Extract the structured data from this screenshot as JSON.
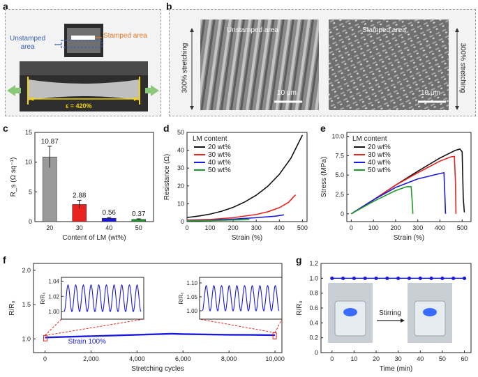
{
  "panel_labels": {
    "a": "a",
    "b": "b",
    "c": "c",
    "d": "d",
    "e": "e",
    "f": "f",
    "g": "g"
  },
  "panel_a": {
    "unstamped_label_1": "Unstamped",
    "unstamped_label_2": "area",
    "stamped_label": "Stamped area",
    "strain_label": "ε = 420%"
  },
  "panel_b": {
    "left_vertical": "300% stretching",
    "right_vertical": "300% stretching",
    "unstamped_title": "Unstamped area",
    "stamped_title": "Stamped area",
    "scale_left": "10 μm",
    "scale_right": "10 μm"
  },
  "colors": {
    "red": "#e8231f",
    "blue": "#1a1adf",
    "green": "#1f9a2a",
    "black": "#111111",
    "grey_bar": "#9a9a9a",
    "label_blue": "#3a5fb0",
    "label_orange": "#e87722",
    "arrow_green": "#8bc97a"
  },
  "chart_data": [
    {
      "id": "c",
      "type": "bar",
      "ylabel": "R_s (Ω sq⁻¹)",
      "xlabel": "Content of LM (wt%)",
      "categories": [
        "20",
        "30",
        "40",
        "50"
      ],
      "values": [
        10.87,
        2.88,
        0.56,
        0.37
      ],
      "errors": [
        1.8,
        0.7,
        0.12,
        0.1
      ],
      "value_labels": [
        "10.87",
        "2.88",
        "0.56",
        "0.37"
      ],
      "ylim": [
        0,
        15
      ],
      "yticks": [
        "0",
        "5",
        "10",
        "15"
      ]
    },
    {
      "id": "d",
      "type": "line",
      "xlabel": "Strain (%)",
      "ylabel": "Resistance (Ω)",
      "legend_title": "LM content",
      "xlim": [
        0,
        520
      ],
      "ylim": [
        0,
        50
      ],
      "xticks": [
        "0",
        "100",
        "200",
        "300",
        "400",
        "500"
      ],
      "yticks": [
        "0",
        "10",
        "20",
        "30",
        "40",
        "50"
      ],
      "series": [
        {
          "name": "20 wt%",
          "color": "#111111",
          "x": [
            0,
            50,
            100,
            150,
            200,
            250,
            300,
            350,
            400,
            450,
            500
          ],
          "y": [
            2.3,
            3.1,
            4.2,
            5.8,
            8.0,
            11.0,
            14.8,
            19.8,
            26.5,
            35.5,
            48.5
          ]
        },
        {
          "name": "30 wt%",
          "color": "#e8231f",
          "x": [
            0,
            100,
            200,
            300,
            350,
            400,
            440,
            470
          ],
          "y": [
            0.8,
            1.2,
            2.2,
            4.0,
            5.5,
            7.8,
            10.8,
            15.0
          ]
        },
        {
          "name": "40 wt%",
          "color": "#1a1adf",
          "x": [
            0,
            100,
            200,
            300,
            380,
            420
          ],
          "y": [
            0.5,
            0.8,
            1.4,
            2.2,
            3.0,
            3.8
          ]
        },
        {
          "name": "50 wt%",
          "color": "#1f9a2a",
          "x": [
            0,
            100,
            200,
            270
          ],
          "y": [
            0.4,
            0.6,
            0.9,
            1.1
          ]
        }
      ]
    },
    {
      "id": "e",
      "type": "line",
      "xlabel": "Strain (%)",
      "ylabel": "Stress (MPa)",
      "legend_title": "LM content",
      "xlim": [
        -20,
        540
      ],
      "ylim": [
        -1,
        10.5
      ],
      "xticks": [
        "0",
        "100",
        "200",
        "300",
        "400",
        "500"
      ],
      "yticks": [
        "0",
        "2.5",
        "5.0",
        "7.5",
        "10.0"
      ],
      "series": [
        {
          "name": "20 wt%",
          "color": "#111111",
          "x": [
            0,
            50,
            100,
            200,
            300,
            400,
            470,
            490,
            500,
            505,
            510
          ],
          "y": [
            0,
            0.9,
            1.8,
            3.7,
            5.5,
            7.2,
            8.2,
            8.35,
            8.0,
            2.0,
            0.2
          ]
        },
        {
          "name": "30 wt%",
          "color": "#e8231f",
          "x": [
            0,
            50,
            100,
            200,
            300,
            400,
            450,
            465,
            470,
            472
          ],
          "y": [
            0,
            0.9,
            1.8,
            3.7,
            5.3,
            6.8,
            7.35,
            7.4,
            4.0,
            0
          ]
        },
        {
          "name": "40 wt%",
          "color": "#1a1adf",
          "x": [
            0,
            50,
            100,
            200,
            300,
            400,
            418,
            422,
            425
          ],
          "y": [
            0,
            0.9,
            1.8,
            3.4,
            4.5,
            5.2,
            5.3,
            2.5,
            0
          ]
        },
        {
          "name": "50 wt%",
          "color": "#1f9a2a",
          "x": [
            0,
            50,
            100,
            200,
            250,
            270,
            275,
            278
          ],
          "y": [
            0,
            0.8,
            1.6,
            3.0,
            3.5,
            3.5,
            1.5,
            0
          ]
        }
      ]
    },
    {
      "id": "f",
      "type": "line",
      "xlabel": "Stretching cycles",
      "ylabel": "R/R₀",
      "xlim": [
        -500,
        10300
      ],
      "ylim": [
        0.8,
        2.1
      ],
      "xticks": [
        "0",
        "2,000",
        "4,000",
        "6,000",
        "8,000",
        "10,000"
      ],
      "yticks": [
        "1.0",
        "1.5",
        "2.0"
      ],
      "annotation": "Strain 100%",
      "series": [
        {
          "name": "R/R0",
          "color": "#1a1adf",
          "x": [
            0,
            1000,
            2000,
            3000,
            4000,
            5000,
            5500,
            6000,
            7000,
            8000,
            9000,
            10000
          ],
          "y": [
            1.02,
            1.03,
            1.04,
            1.05,
            1.06,
            1.07,
            1.075,
            1.07,
            1.065,
            1.06,
            1.058,
            1.055
          ]
        }
      ],
      "insets": [
        {
          "yticks": [
            "1.00",
            "1.02",
            "1.04"
          ],
          "ylim": [
            0.99,
            1.045
          ],
          "base": 1.0,
          "peak": 1.035,
          "cycles": 10
        },
        {
          "yticks": [
            "1.00",
            "1.05",
            "1.10"
          ],
          "ylim": [
            0.97,
            1.12
          ],
          "base": 1.0,
          "peak": 1.09,
          "cycles": 10
        }
      ]
    },
    {
      "id": "g",
      "type": "line",
      "xlabel": "Time (min)",
      "ylabel": "R/R₀",
      "xlim": [
        -5,
        63
      ],
      "ylim": [
        0,
        1.2
      ],
      "xticks": [
        "0",
        "10",
        "20",
        "30",
        "40",
        "50",
        "60"
      ],
      "yticks": [
        "0",
        "0.2",
        "0.4",
        "0.6",
        "0.8",
        "1.0",
        "1.2"
      ],
      "inset_label": "Stirring",
      "series": [
        {
          "name": "R/R0",
          "color": "#1a1adf",
          "x": [
            0,
            5,
            10,
            15,
            20,
            25,
            30,
            35,
            40,
            45,
            50,
            55,
            60
          ],
          "y": [
            1.0,
            1.0,
            1.0,
            1.0,
            1.0,
            1.0,
            1.0,
            1.0,
            1.0,
            1.0,
            1.0,
            1.0,
            1.0
          ]
        }
      ]
    }
  ]
}
